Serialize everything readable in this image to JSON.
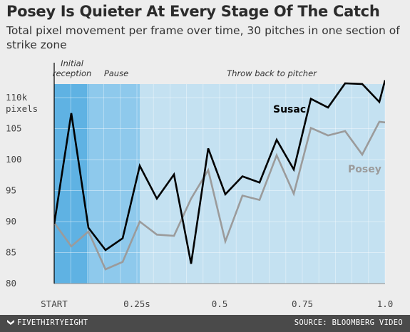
{
  "title": "Posey Is Quieter At Every Stage Of The Catch",
  "subtitle": "Total pixel movement per frame over time, 30 pitches in one section of strike zone",
  "footer": {
    "logo": "FIVETHIRTYEIGHT",
    "source": "SOURCE: BLOOMBERG VIDEO"
  },
  "chart_data": {
    "type": "line",
    "xlim": [
      0,
      1.0
    ],
    "ylim": [
      80,
      112
    ],
    "yticks": [
      {
        "value": 110,
        "label": "110k"
      },
      {
        "value": 105,
        "label": "105"
      },
      {
        "value": 100,
        "label": "100"
      },
      {
        "value": 95,
        "label": "95"
      },
      {
        "value": 90,
        "label": "90"
      },
      {
        "value": 85,
        "label": "85"
      },
      {
        "value": 80,
        "label": "80"
      }
    ],
    "ylabel_unit": "pixels",
    "xticks": [
      {
        "value": 0,
        "label": "START"
      },
      {
        "value": 0.25,
        "label": "0.25s"
      },
      {
        "value": 0.5,
        "label": "0.5"
      },
      {
        "value": 0.75,
        "label": "0.75"
      },
      {
        "value": 1.0,
        "label": "1.0"
      }
    ],
    "phases": [
      {
        "label": "Initial reception",
        "lines": [
          "Initial",
          "reception"
        ],
        "start": 0,
        "end": 0.1034,
        "color": "#5fb2e3"
      },
      {
        "label": "Pause",
        "lines": [
          "Pause"
        ],
        "start": 0.1034,
        "end": 0.2586,
        "color": "#8ec9ec"
      },
      {
        "label": "Throw back to pitcher",
        "lines": [
          "Throw back to pitcher"
        ],
        "start": 0.2586,
        "end": 1.0,
        "color": "#c4e1f1"
      }
    ],
    "x": [
      0,
      0.0517,
      0.1034,
      0.1552,
      0.2069,
      0.2586,
      0.3103,
      0.3621,
      0.4138,
      0.4655,
      0.5172,
      0.569,
      0.6207,
      0.6724,
      0.7241,
      0.7759,
      0.8276,
      0.8793,
      0.931,
      0.9828,
      1.0
    ],
    "series": [
      {
        "name": "Susac",
        "color": "#000000",
        "values": [
          89.6,
          107.5,
          89.0,
          85.4,
          87.3,
          99.0,
          93.7,
          97.6,
          83.2,
          101.8,
          94.4,
          97.3,
          96.3,
          103.2,
          98.4,
          109.8,
          108.4,
          112.3,
          112.2,
          109.3,
          112.8
        ]
      },
      {
        "name": "Posey",
        "color": "#9b9b9b",
        "values": [
          89.8,
          86.0,
          88.4,
          82.3,
          83.5,
          90.0,
          87.9,
          87.7,
          93.7,
          98.3,
          86.8,
          94.2,
          93.5,
          100.7,
          94.5,
          105.1,
          103.9,
          104.6,
          100.8,
          106.1,
          106.0
        ]
      }
    ]
  }
}
